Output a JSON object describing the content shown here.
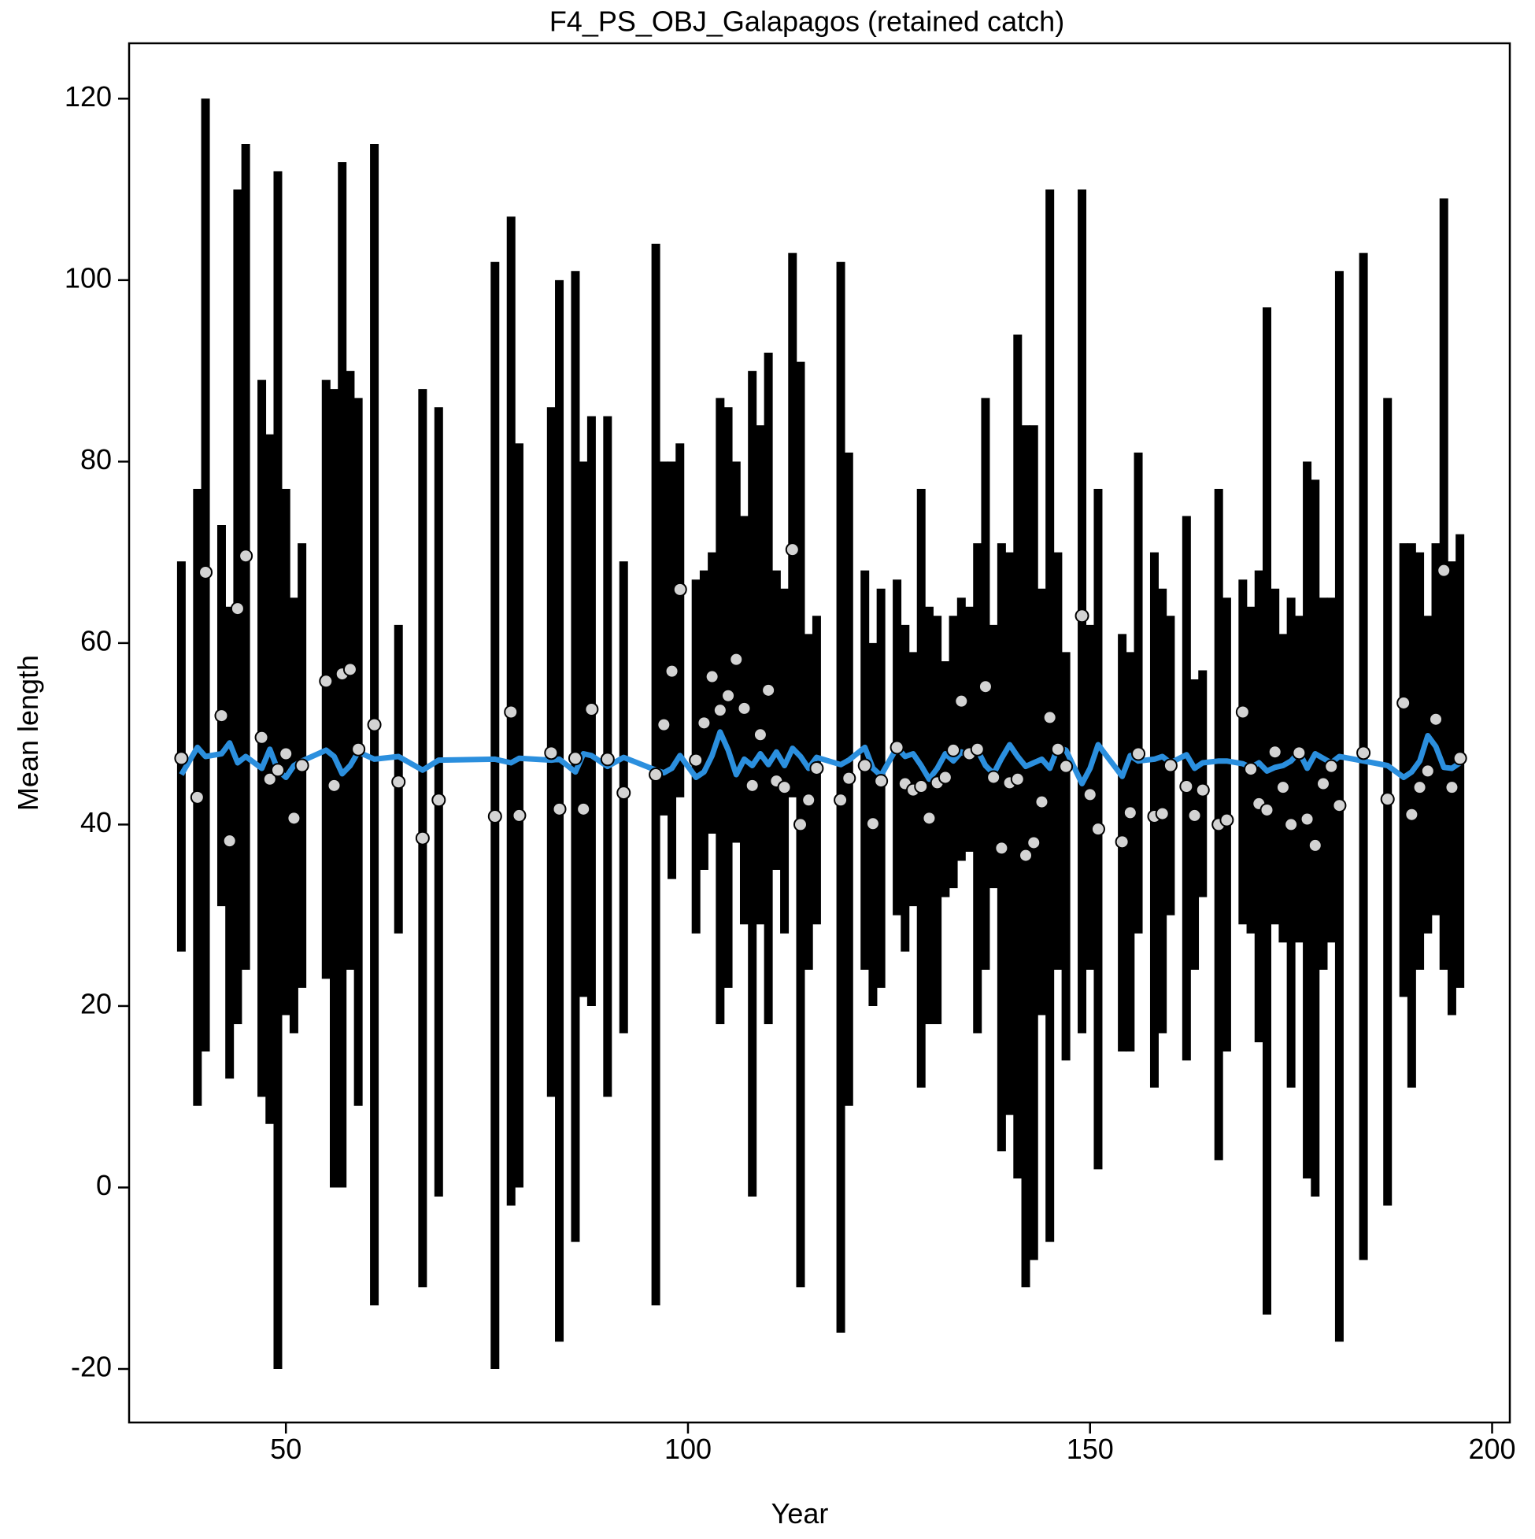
{
  "chart_data": {
    "type": "errorbar",
    "title": "F4_PS_OBJ_Galapagos (retained catch)",
    "xlabel": "Year",
    "ylabel": "Mean length",
    "xlim": [
      30.5,
      202.2
    ],
    "ylim": [
      -25.9,
      126.1
    ],
    "xticks": [
      50,
      100,
      150,
      200
    ],
    "yticks": [
      -20,
      0,
      20,
      40,
      60,
      80,
      100,
      120
    ],
    "bar_color": "#000000",
    "point_color": "#d3d3d3",
    "line_color": "#2b8fde",
    "x": [
      37,
      39,
      40,
      42,
      43,
      44,
      45,
      47,
      48,
      49,
      50,
      51,
      52,
      55,
      56,
      57,
      58,
      59,
      61,
      64,
      67,
      69,
      76,
      78,
      79,
      83,
      84,
      86,
      87,
      88,
      90,
      92,
      96,
      97,
      98,
      99,
      101,
      102,
      103,
      104,
      105,
      106,
      107,
      108,
      109,
      110,
      111,
      112,
      113,
      114,
      115,
      116,
      119,
      120,
      122,
      123,
      124,
      126,
      127,
      128,
      129,
      130,
      131,
      132,
      133,
      134,
      135,
      136,
      137,
      138,
      139,
      140,
      141,
      142,
      143,
      144,
      145,
      146,
      147,
      149,
      150,
      151,
      154,
      155,
      156,
      158,
      159,
      160,
      162,
      163,
      164,
      166,
      167,
      169,
      170,
      171,
      172,
      173,
      174,
      175,
      176,
      177,
      178,
      179,
      180,
      181,
      184,
      187,
      189,
      190,
      191,
      192,
      193,
      194,
      195,
      196
    ],
    "observed": [
      47.3,
      43,
      67.8,
      52,
      38.2,
      63.8,
      69.6,
      49.6,
      45,
      46,
      47.8,
      40.7,
      46.5,
      55.8,
      44.3,
      56.6,
      57.1,
      48.3,
      51,
      44.7,
      38.5,
      42.7,
      40.9,
      52.4,
      41,
      47.9,
      41.7,
      47.3,
      41.7,
      52.7,
      47.2,
      43.5,
      45.5,
      51,
      56.9,
      65.9,
      47.1,
      51.2,
      56.3,
      52.6,
      54.2,
      58.2,
      52.8,
      44.3,
      49.9,
      54.8,
      44.8,
      44.1,
      70.3,
      40,
      42.7,
      46.2,
      42.7,
      45.1,
      46.5,
      40.1,
      44.8,
      48.5,
      44.5,
      43.8,
      44.2,
      40.7,
      44.6,
      45.2,
      48.2,
      53.6,
      47.8,
      48.3,
      55.2,
      45.2,
      37.4,
      44.6,
      45,
      36.6,
      38,
      42.5,
      51.8,
      48.3,
      46.4,
      63,
      43.3,
      39.5,
      38.1,
      41.3,
      47.8,
      40.9,
      41.2,
      46.5,
      44.2,
      41,
      43.8,
      40,
      40.5,
      52.4,
      46.1,
      42.3,
      41.6,
      48,
      44.1,
      40,
      47.9,
      40.6,
      37.7,
      44.5,
      46.4,
      42.1,
      47.9,
      42.8,
      53.4,
      41.1,
      44.1,
      45.9,
      51.6,
      68,
      44.1,
      47.3
    ],
    "lower": [
      26,
      9,
      15,
      31,
      12,
      18,
      24,
      10,
      7,
      -20,
      19,
      17,
      22,
      23,
      0,
      0,
      24,
      9,
      -13,
      28,
      -11,
      -1,
      -20,
      -2,
      0,
      10,
      -17,
      -6,
      21,
      20,
      10,
      17,
      -13,
      41,
      34,
      43,
      28,
      35,
      39,
      18,
      22,
      38,
      29,
      -1,
      29,
      18,
      35,
      28,
      43,
      -11,
      24,
      29,
      -16,
      9,
      24,
      20,
      22,
      30,
      26,
      31,
      11,
      18,
      18,
      32,
      33,
      36,
      37,
      17,
      24,
      33,
      4,
      8,
      1,
      -11,
      -8,
      19,
      -6,
      24,
      14,
      17,
      24,
      2,
      15,
      15,
      28,
      11,
      17,
      30,
      14,
      24,
      32,
      3,
      15,
      29,
      28,
      16,
      -14,
      29,
      27,
      11,
      27,
      1,
      -1,
      24,
      27,
      -17,
      -8,
      -2,
      21,
      11,
      24,
      28,
      30,
      24,
      19,
      22
    ],
    "upper": [
      69,
      77,
      120,
      73,
      64,
      110,
      115,
      89,
      83,
      112,
      77,
      65,
      71,
      89,
      88,
      113,
      90,
      87,
      115,
      62,
      88,
      86,
      102,
      107,
      82,
      86,
      100,
      101,
      80,
      85,
      85,
      69,
      104,
      80,
      80,
      82,
      67,
      68,
      70,
      87,
      86,
      80,
      74,
      90,
      84,
      92,
      68,
      66,
      103,
      91,
      61,
      63,
      102,
      81,
      68,
      60,
      66,
      67,
      62,
      59,
      77,
      64,
      63,
      58,
      63,
      65,
      64,
      71,
      87,
      62,
      71,
      70,
      94,
      84,
      84,
      66,
      110,
      70,
      59,
      110,
      62,
      77,
      61,
      59,
      81,
      70,
      66,
      63,
      74,
      56,
      57,
      77,
      65,
      67,
      64,
      68,
      97,
      66,
      61,
      65,
      63,
      80,
      78,
      65,
      65,
      101,
      103,
      87,
      71,
      71,
      70,
      63,
      71,
      109,
      69,
      72
    ],
    "expected": [
      45.5,
      48.5,
      47.5,
      47.8,
      49,
      46.8,
      47.5,
      46.2,
      48.3,
      46,
      45.2,
      46.5,
      47,
      48.2,
      47.5,
      45.6,
      46.5,
      48,
      47.2,
      47.5,
      46,
      47.1,
      47.2,
      46.8,
      47.3,
      47.1,
      47.2,
      45.8,
      47.8,
      47.6,
      46.4,
      47.4,
      46,
      45.7,
      46.2,
      47.6,
      45.2,
      45.8,
      47.6,
      50.2,
      48.2,
      45.5,
      47.2,
      46.5,
      47.8,
      46.6,
      48,
      46.5,
      48.4,
      47.5,
      46.2,
      47.4,
      46.6,
      47.1,
      48.5,
      46.2,
      45.4,
      48.5,
      47.5,
      47.8,
      46.5,
      45,
      46.2,
      47.8,
      47,
      48,
      47.5,
      48.2,
      46.5,
      45.6,
      47.3,
      48.8,
      47.5,
      46.4,
      46.8,
      47.2,
      46.2,
      48.5,
      48.2,
      44.5,
      46.2,
      48.8,
      45.3,
      47.6,
      47,
      47.2,
      47.5,
      46.8,
      47.7,
      46.2,
      46.8,
      47,
      47,
      46.7,
      46.3,
      46.8,
      45.9,
      46.3,
      46.5,
      47,
      48,
      46.2,
      47.8,
      47.3,
      46.8,
      47.5,
      47,
      46.5,
      45.2,
      45.8,
      47,
      49.8,
      48.6,
      46.3,
      46.2,
      46.8
    ]
  }
}
